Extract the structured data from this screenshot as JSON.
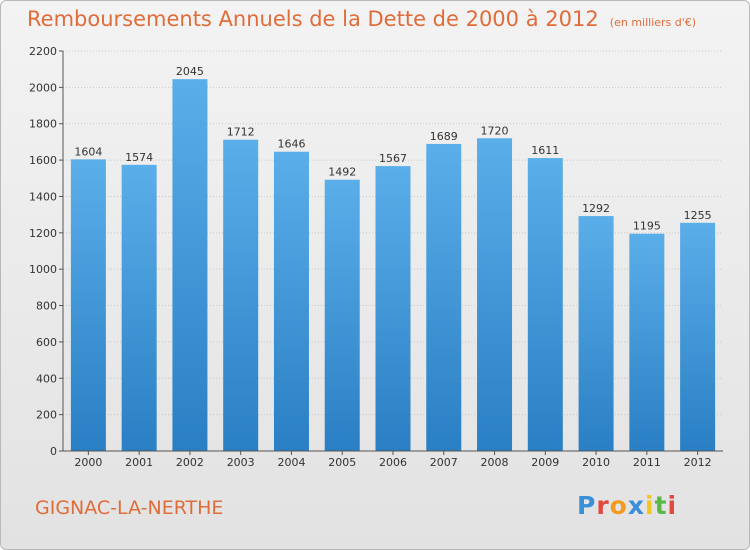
{
  "title": "Remboursements Annuels de la Dette de 2000 à 2012",
  "unit": "(en milliers d'€)",
  "commune": "GIGNAC-LA-NERTHE",
  "logo": {
    "letters": [
      "P",
      "r",
      "o",
      "x",
      "i",
      "t",
      "i"
    ],
    "colors": [
      "#3a8fd6",
      "#e2483d",
      "#f39a1f",
      "#3a8fd6",
      "#f3c61f",
      "#58b947",
      "#e2483d"
    ]
  },
  "colors": {
    "bar_light": "#5aaee9",
    "bar_dark": "#2a7fc4",
    "title": "#e06c3a"
  },
  "chart_data": {
    "type": "bar",
    "categories": [
      "2000",
      "2001",
      "2002",
      "2003",
      "2004",
      "2005",
      "2006",
      "2007",
      "2008",
      "2009",
      "2010",
      "2011",
      "2012"
    ],
    "values": [
      1604,
      1574,
      2045,
      1712,
      1646,
      1492,
      1567,
      1689,
      1720,
      1611,
      1292,
      1195,
      1255
    ],
    "ylim": [
      0,
      2200
    ],
    "yticks": [
      0,
      200,
      400,
      600,
      800,
      1000,
      1200,
      1400,
      1600,
      1800,
      2000,
      2200
    ],
    "grid": true
  }
}
